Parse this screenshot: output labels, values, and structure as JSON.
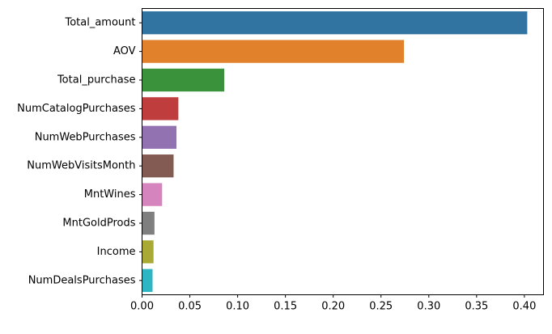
{
  "chart_data": {
    "type": "bar",
    "orientation": "horizontal",
    "title": "",
    "xlabel": "",
    "ylabel": "",
    "xlim": [
      0,
      0.42
    ],
    "xticks": [
      0.0,
      0.05,
      0.1,
      0.15,
      0.2,
      0.25,
      0.3,
      0.35,
      0.4
    ],
    "xtick_labels": [
      "0.00",
      "0.05",
      "0.10",
      "0.15",
      "0.20",
      "0.25",
      "0.30",
      "0.35",
      "0.40"
    ],
    "grid": false,
    "categories": [
      "Total_amount",
      "AOV",
      "Total_purchase",
      "NumCatalogPurchases",
      "NumWebPurchases",
      "NumWebVisitsMonth",
      "MntWines",
      "MntGoldProds",
      "Income",
      "NumDealsPurchases"
    ],
    "values": [
      0.403,
      0.274,
      0.086,
      0.038,
      0.036,
      0.033,
      0.021,
      0.013,
      0.012,
      0.011
    ],
    "colors": [
      "#3274a1",
      "#e1812c",
      "#3a923a",
      "#c03d3e",
      "#9372b2",
      "#845b53",
      "#d684bd",
      "#7f7f7f",
      "#a9aa35",
      "#2eb5c3"
    ]
  }
}
